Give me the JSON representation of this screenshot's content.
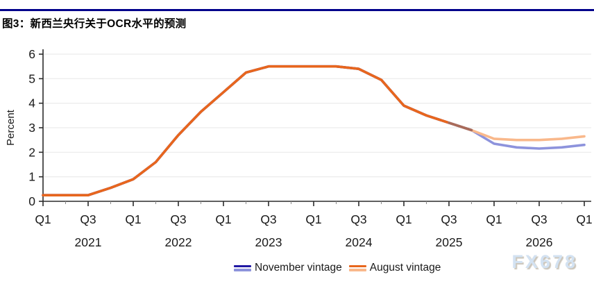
{
  "title": "图3：新西兰央行关于OCR水平的预测",
  "watermark": "FX678",
  "colors": {
    "header_rule": "#00008b",
    "axis": "#2b2b2b",
    "grid": "#ececec",
    "november_actual": "#2017a3",
    "november_forecast": "#8d93dc",
    "august_actual": "#e8661d",
    "august_forecast": "#f9b88b",
    "overlap_blend": "#a86b5a"
  },
  "chart_data": {
    "type": "line",
    "title": "",
    "xlabel": "",
    "ylabel": "Percent",
    "ylim": [
      0,
      6.2
    ],
    "grid": "horizontal",
    "legend_position": "bottom",
    "y_ticks": [
      "0",
      "1",
      "2",
      "3",
      "4",
      "5",
      "6"
    ],
    "x": [
      "2021Q1",
      "2021Q2",
      "2021Q3",
      "2021Q4",
      "2022Q1",
      "2022Q2",
      "2022Q3",
      "2022Q4",
      "2023Q1",
      "2023Q2",
      "2023Q3",
      "2023Q4",
      "2024Q1",
      "2024Q2",
      "2024Q3",
      "2024Q4",
      "2025Q1",
      "2025Q2",
      "2025Q3",
      "2025Q4",
      "2026Q1",
      "2026Q2",
      "2026Q3",
      "2026Q4",
      "2027Q1"
    ],
    "x_tick_labels": [
      "Q1",
      "Q3",
      "Q1",
      "Q3",
      "Q1",
      "Q3",
      "Q1",
      "Q3",
      "Q1",
      "Q3",
      "Q1",
      "Q3",
      "Q1"
    ],
    "x_year_labels": [
      "2021",
      "2022",
      "2023",
      "2024",
      "2025",
      "2026"
    ],
    "series": [
      {
        "name": "November vintage",
        "forecast_start_index": 19,
        "values": [
          0.25,
          0.25,
          0.25,
          0.55,
          0.9,
          1.6,
          2.7,
          3.65,
          4.45,
          5.25,
          5.5,
          5.5,
          5.5,
          5.5,
          5.4,
          4.95,
          3.9,
          3.5,
          3.2,
          2.9,
          2.35,
          2.2,
          2.15,
          2.2,
          2.3
        ]
      },
      {
        "name": "August vintage",
        "forecast_start_index": 18,
        "values": [
          0.25,
          0.25,
          0.25,
          0.55,
          0.9,
          1.6,
          2.7,
          3.65,
          4.45,
          5.25,
          5.5,
          5.5,
          5.5,
          5.5,
          5.4,
          4.95,
          3.9,
          3.5,
          3.2,
          2.9,
          2.55,
          2.5,
          2.5,
          2.55,
          2.65
        ]
      }
    ],
    "overlap_range": [
      18,
      19
    ]
  },
  "legend": {
    "november_label": "November vintage",
    "august_label": "August vintage"
  }
}
